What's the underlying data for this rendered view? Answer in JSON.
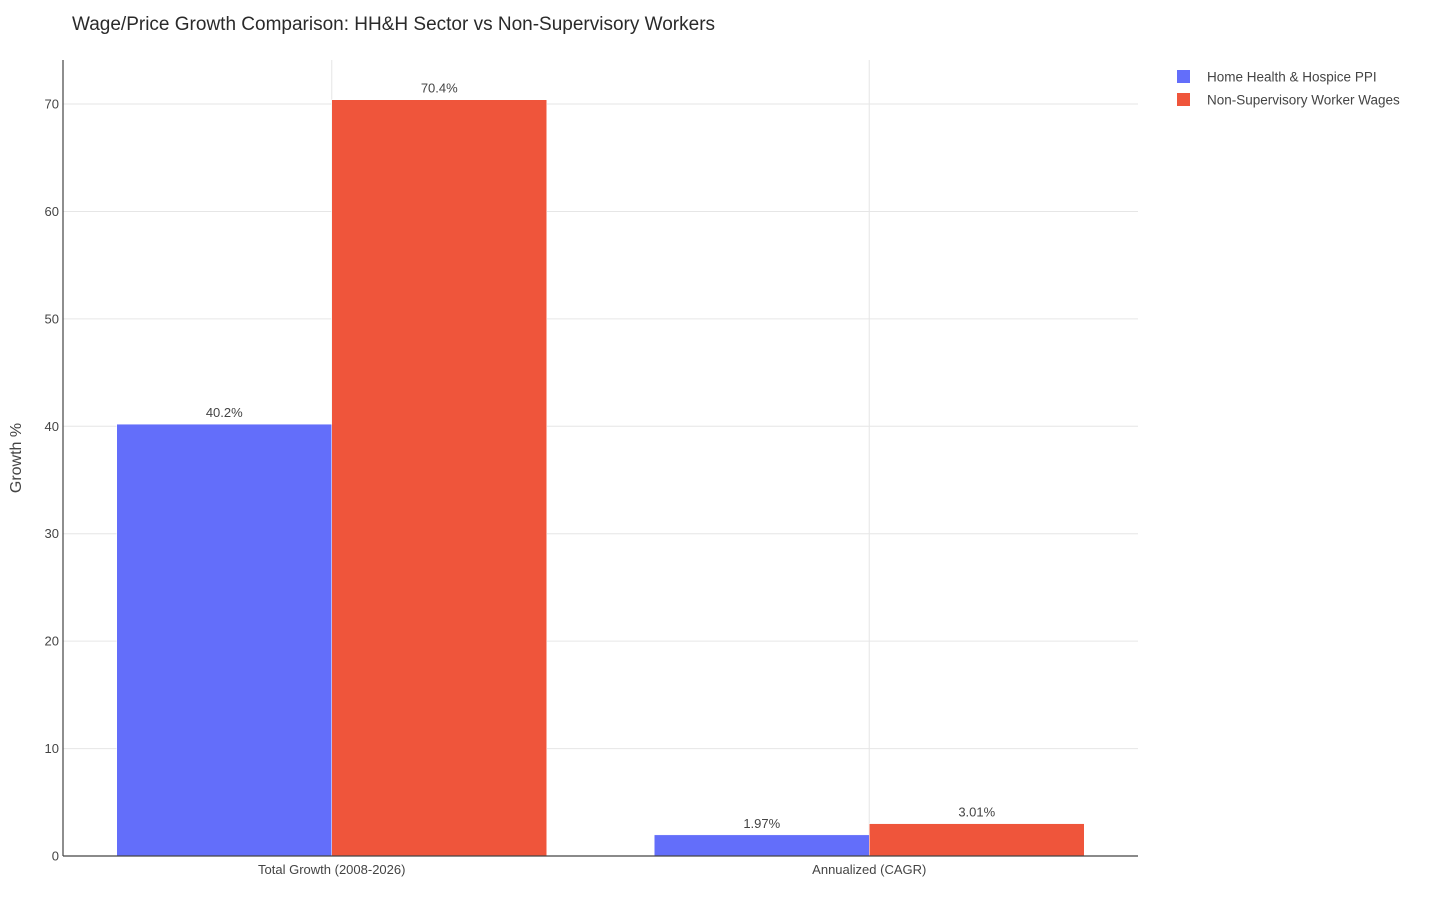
{
  "chart_data": {
    "type": "bar",
    "title": "Wage/Price Growth Comparison: HH&H Sector vs Non-Supervisory Workers",
    "xlabel": "",
    "ylabel": "Growth %",
    "categories": [
      "Total Growth (2008-2026)",
      "Annualized (CAGR)"
    ],
    "series": [
      {
        "name": "Home Health & Hospice PPI",
        "color": "#636efa",
        "values": [
          40.2,
          1.97
        ],
        "labels": [
          "40.2%",
          "1.97%"
        ]
      },
      {
        "name": "Non-Supervisory Worker Wages",
        "color": "#ef553b",
        "values": [
          70.4,
          3.01
        ],
        "labels": [
          "70.4%",
          "3.01%"
        ]
      }
    ],
    "ylim": [
      0,
      74.1
    ],
    "yticks": [
      0,
      10,
      20,
      30,
      40,
      50,
      60,
      70
    ],
    "grid": true,
    "legend_position": "top-right"
  }
}
